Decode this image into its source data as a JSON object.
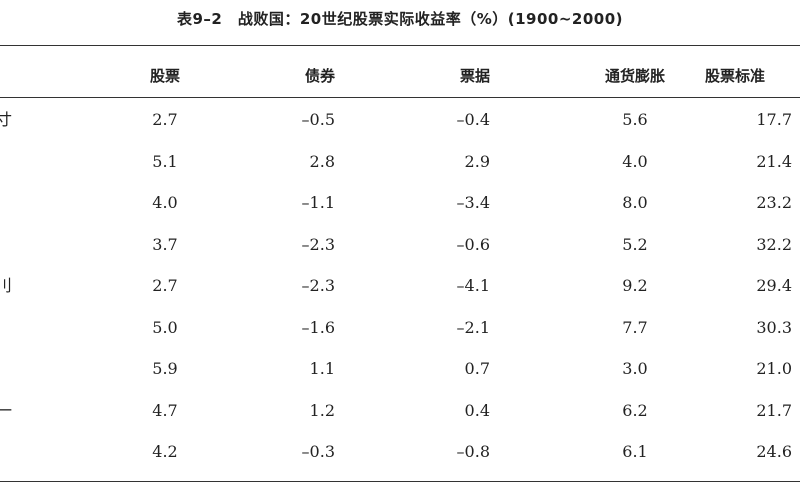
{
  "table": {
    "title": "表9–2　战败国：20世纪股票实际收益率（%）(1900~2000)",
    "headers": [
      "",
      "股票",
      "债券",
      "票据",
      "通货膨胀",
      "股票标准"
    ],
    "rows": [
      {
        "label": "寸",
        "values": [
          "2.7",
          "–0.5",
          "–0.4",
          "5.6",
          "17.7"
        ]
      },
      {
        "label": "",
        "values": [
          "5.1",
          "2.8",
          "2.9",
          "4.0",
          "21.4"
        ]
      },
      {
        "label": "",
        "values": [
          "4.0",
          "–1.1",
          "–3.4",
          "8.0",
          "23.2"
        ]
      },
      {
        "label": "",
        "values": [
          "3.7",
          "–2.3",
          "–0.6",
          "5.2",
          "32.2"
        ]
      },
      {
        "label": "刂",
        "values": [
          "2.7",
          "–2.3",
          "–4.1",
          "9.2",
          "29.4"
        ]
      },
      {
        "label": "",
        "values": [
          "5.0",
          "–1.6",
          "–2.1",
          "7.7",
          "30.3"
        ]
      },
      {
        "label": "",
        "values": [
          "5.9",
          "1.1",
          "0.7",
          "3.0",
          "21.0"
        ]
      },
      {
        "label": "一",
        "values": [
          "4.7",
          "1.2",
          "0.4",
          "6.2",
          "21.7"
        ]
      },
      {
        "label": "",
        "values": [
          "4.2",
          "–0.3",
          "–0.8",
          "6.1",
          "24.6"
        ]
      }
    ]
  }
}
